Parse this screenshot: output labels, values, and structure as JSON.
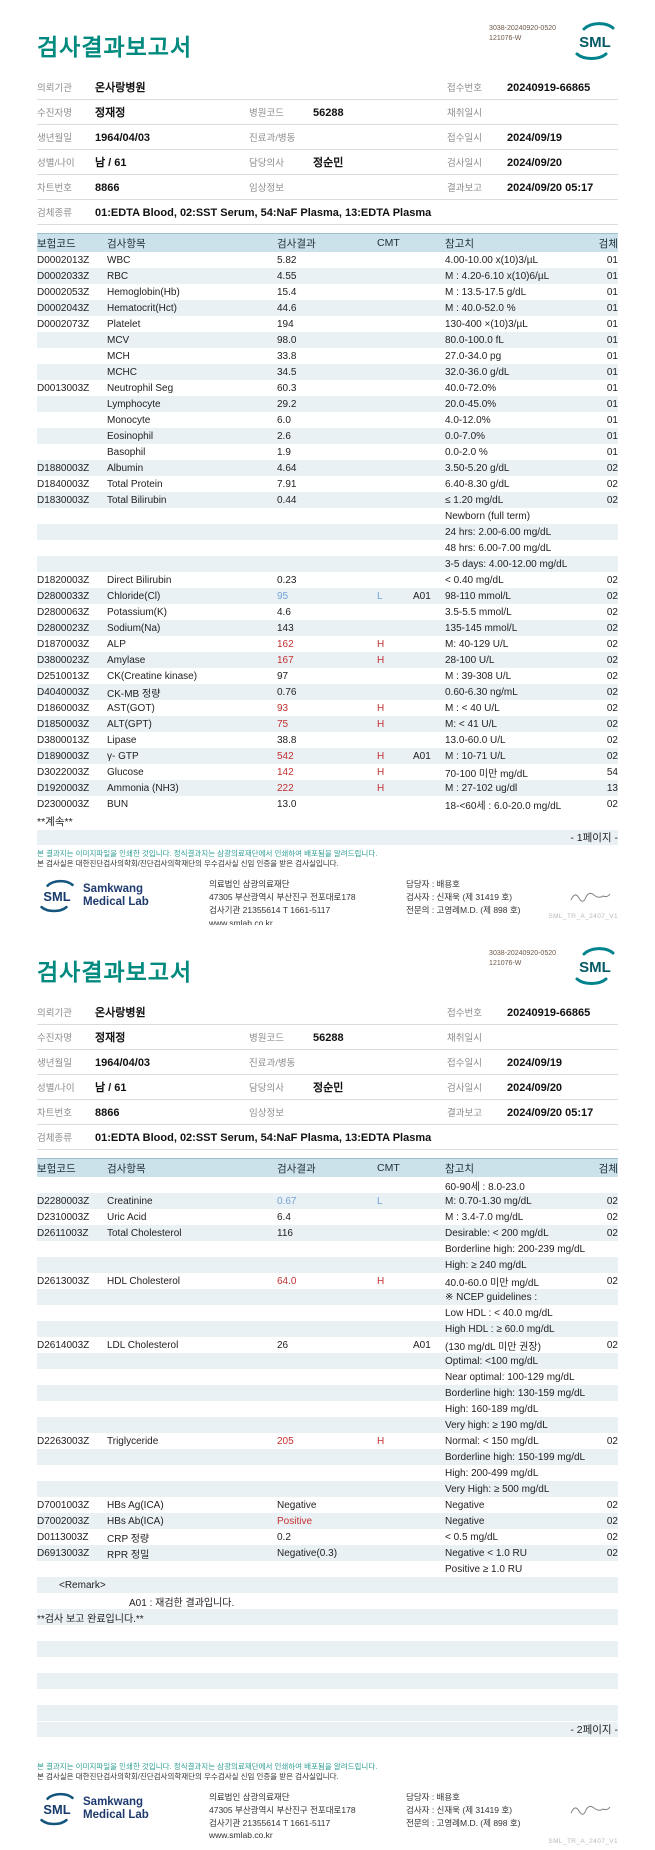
{
  "colors": {
    "accent_teal": "#00897E",
    "header_bg": "#CCE2EB",
    "stripe_bg": "#E9F1F5",
    "high_red": "#C53030",
    "low_blue": "#74A3D6",
    "footer_navy": "#1E3A6E",
    "disclaimer_teal": "#2E9E94"
  },
  "doc": {
    "code1": "3038-20240920-0520",
    "code2": "121076-W",
    "version": "SML_TR_A_2407_V1",
    "logo_text": "SML"
  },
  "report": {
    "title": "검사결과보고서",
    "info": {
      "rows": [
        {
          "cells": [
            {
              "label": "의뢰기관",
              "value": "온사랑병원"
            },
            {
              "label": "",
              "value": ""
            },
            {
              "label": "접수번호",
              "value": "20240919-66865"
            }
          ]
        },
        {
          "cells": [
            {
              "label": "수진자명",
              "value": "정재정"
            },
            {
              "label": "병원코드",
              "value": "56288"
            },
            {
              "label": "채취일시",
              "value": ""
            }
          ]
        },
        {
          "cells": [
            {
              "label": "생년월일",
              "value": "1964/04/03"
            },
            {
              "label": "진료과/병동",
              "value": ""
            },
            {
              "label": "접수일시",
              "value": "2024/09/19"
            }
          ]
        },
        {
          "cells": [
            {
              "label": "성별/나이",
              "value": "남 / 61"
            },
            {
              "label": "담당의사",
              "value": "정순민"
            },
            {
              "label": "검사일시",
              "value": "2024/09/20"
            }
          ]
        },
        {
          "cells": [
            {
              "label": "차트번호",
              "value": "8866"
            },
            {
              "label": "임상정보",
              "value": ""
            },
            {
              "label": "결과보고",
              "value": "2024/09/20 05:17"
            }
          ]
        },
        {
          "cells": [
            {
              "label": "검체종류",
              "value": "01:EDTA Blood, 02:SST Serum, 54:NaF Plasma, 13:EDTA Plasma"
            }
          ]
        }
      ]
    },
    "columns": {
      "code": "보험코드",
      "name": "검사항목",
      "result": "검사결과",
      "cmt": "CMT",
      "ref": "참고치",
      "spec": "검체"
    },
    "pages": [
      {
        "page_label": "- 1페이지 -",
        "continued": "**계속**",
        "rows": [
          {
            "c": "D0002013Z",
            "n": "WBC",
            "r": "5.82",
            "f": "4.00-10.00 x(10)3/µL",
            "s": "01"
          },
          {
            "c": "D0002033Z",
            "n": "RBC",
            "r": "4.55",
            "f": "M : 4.20-6.10 x(10)6/µL",
            "s": "01"
          },
          {
            "c": "D0002053Z",
            "n": "Hemoglobin(Hb)",
            "r": "15.4",
            "f": "M : 13.5-17.5 g/dL",
            "s": "01"
          },
          {
            "c": "D0002043Z",
            "n": "Hematocrit(Hct)",
            "r": "44.6",
            "f": "M : 40.0-52.0 %",
            "s": "01"
          },
          {
            "c": "D0002073Z",
            "n": "Platelet",
            "r": "194",
            "f": "130-400 ×(10)3/µL",
            "s": "01"
          },
          {
            "c": "",
            "n": "MCV",
            "r": "98.0",
            "f": "80.0-100.0 fL",
            "s": "01"
          },
          {
            "c": "",
            "n": "MCH",
            "r": "33.8",
            "f": "27.0-34.0 pg",
            "s": "01"
          },
          {
            "c": "",
            "n": "MCHC",
            "r": "34.5",
            "f": "32.0-36.0 g/dL",
            "s": "01"
          },
          {
            "c": "D0013003Z",
            "n": "Neutrophil Seg",
            "r": "60.3",
            "f": "40.0-72.0%",
            "s": "01"
          },
          {
            "c": "",
            "n": "Lymphocyte",
            "r": "29.2",
            "f": "20.0-45.0%",
            "s": "01"
          },
          {
            "c": "",
            "n": "Monocyte",
            "r": "6.0",
            "f": "4.0-12.0%",
            "s": "01"
          },
          {
            "c": "",
            "n": "Eosinophil",
            "r": "2.6",
            "f": "0.0-7.0%",
            "s": "01"
          },
          {
            "c": "",
            "n": "Basophil",
            "r": "1.9",
            "f": "0.0-2.0 %",
            "s": "01"
          },
          {
            "c": "D1880003Z",
            "n": "Albumin",
            "r": "4.64",
            "f": "3.50-5.20 g/dL",
            "s": "02"
          },
          {
            "c": "D1840003Z",
            "n": "Total Protein",
            "r": "7.91",
            "f": "6.40-8.30 g/dL",
            "s": "02"
          },
          {
            "c": "D1830003Z",
            "n": "Total Bilirubin",
            "r": "0.44",
            "f": "≤ 1.20 mg/dL",
            "s": "02"
          },
          {
            "f": "Newborn (full term)"
          },
          {
            "f": "24 hrs: 2.00-6.00 mg/dL"
          },
          {
            "f": "48 hrs: 6.00-7.00 mg/dL"
          },
          {
            "f": "3-5 days: 4.00-12.00 mg/dL"
          },
          {
            "c": "D1820003Z",
            "n": "Direct Bilirubin",
            "r": "0.23",
            "f": "< 0.40 mg/dL",
            "s": "02"
          },
          {
            "c": "D2800033Z",
            "n": "Chloride(Cl)",
            "r": "95",
            "rc": "lo",
            "m": "L",
            "a": "A01",
            "f": "98-110 mmol/L",
            "s": "02"
          },
          {
            "c": "D2800063Z",
            "n": "Potassium(K)",
            "r": "4.6",
            "f": "3.5-5.5 mmol/L",
            "s": "02"
          },
          {
            "c": "D2800023Z",
            "n": "Sodium(Na)",
            "r": "143",
            "f": "135-145 mmol/L",
            "s": "02"
          },
          {
            "c": "D1870003Z",
            "n": "ALP",
            "r": "162",
            "rc": "hi",
            "m": "H",
            "f": "M: 40-129 U/L",
            "s": "02"
          },
          {
            "c": "D3800023Z",
            "n": "Amylase",
            "r": "167",
            "rc": "hi",
            "m": "H",
            "f": "28-100 U/L",
            "s": "02"
          },
          {
            "c": "D2510013Z",
            "n": "CK(Creatine kinase)",
            "r": "97",
            "f": "M : 39-308 U/L",
            "s": "02"
          },
          {
            "c": "D4040003Z",
            "n": "CK-MB 정량",
            "r": "0.76",
            "f": "0.60-6.30 ng/mL",
            "s": "02"
          },
          {
            "c": "D1860003Z",
            "n": "AST(GOT)",
            "r": "93",
            "rc": "hi",
            "m": "H",
            "f": "M : < 40 U/L",
            "s": "02"
          },
          {
            "c": "D1850003Z",
            "n": "ALT(GPT)",
            "r": "75",
            "rc": "hi",
            "m": "H",
            "f": "M: < 41 U/L",
            "s": "02"
          },
          {
            "c": "D3800013Z",
            "n": "Lipase",
            "r": "38.8",
            "f": "13.0-60.0 U/L",
            "s": "02"
          },
          {
            "c": "D1890003Z",
            "n": "γ- GTP",
            "r": "542",
            "rc": "hi",
            "m": "H",
            "a": "A01",
            "f": "M : 10-71 U/L",
            "s": "02"
          },
          {
            "c": "D3022003Z",
            "n": "Glucose",
            "r": "142",
            "rc": "hi",
            "m": "H",
            "f": "70-100 미만 mg/dL",
            "s": "54"
          },
          {
            "c": "D1920003Z",
            "n": "Ammonia (NH3)",
            "r": "222",
            "rc": "hi",
            "m": "H",
            "f": "M : 27-102 ug/dl",
            "s": "13"
          },
          {
            "c": "D2300003Z",
            "n": "BUN",
            "r": "13.0",
            "f": "18-<60세 : 6.0-20.0 mg/dL",
            "s": "02"
          }
        ]
      },
      {
        "page_label": "- 2페이지 -",
        "continued": "",
        "rows": [
          {
            "f": "60-90세 : 8.0-23.0"
          },
          {
            "c": "D2280003Z",
            "n": "Creatinine",
            "r": "0.67",
            "rc": "lo",
            "m": "L",
            "f": "M: 0.70-1.30 mg/dL",
            "s": "02"
          },
          {
            "c": "D2310003Z",
            "n": "Uric Acid",
            "r": "6.4",
            "f": "M : 3.4-7.0 mg/dL",
            "s": "02"
          },
          {
            "c": "D2611003Z",
            "n": "Total Cholesterol",
            "r": "116",
            "f": "Desirable: < 200 mg/dL",
            "s": "02"
          },
          {
            "f": "Borderline high: 200-239 mg/dL"
          },
          {
            "f": "High: ≥ 240 mg/dL"
          },
          {
            "c": "D2613003Z",
            "n": "HDL Cholesterol",
            "r": "64.0",
            "rc": "hi",
            "m": "H",
            "f": "40.0-60.0 미만 mg/dL",
            "s": "02"
          },
          {
            "f": "※ NCEP guidelines :"
          },
          {
            "f": "Low HDL : < 40.0 mg/dL"
          },
          {
            "f": "High HDL : ≥ 60.0 mg/dL"
          },
          {
            "c": "D2614003Z",
            "n": "LDL Cholesterol",
            "r": "26",
            "a": "A01",
            "f": "(130 mg/dL 미만 권장)",
            "s": "02"
          },
          {
            "f": "Optimal: <100 mg/dL"
          },
          {
            "f": "Near optimal: 100-129 mg/dL"
          },
          {
            "f": "Borderline high: 130-159 mg/dL"
          },
          {
            "f": "High: 160-189 mg/dL"
          },
          {
            "f": "Very high: ≥ 190 mg/dL"
          },
          {
            "c": "D2263003Z",
            "n": "Triglyceride",
            "r": "205",
            "rc": "hi",
            "m": "H",
            "f": "Normal: < 150 mg/dL",
            "s": "02"
          },
          {
            "f": "Borderline high: 150-199 mg/dL"
          },
          {
            "f": "High: 200-499 mg/dL"
          },
          {
            "f": "Very High: ≥ 500 mg/dL"
          },
          {
            "c": "D7001003Z",
            "n": "HBs Ag(ICA)",
            "r": "Negative",
            "f": "Negative",
            "s": "02"
          },
          {
            "c": "D7002003Z",
            "n": "HBs Ab(ICA)",
            "r": "Positive",
            "rc": "hi",
            "f": "Negative",
            "s": "02"
          },
          {
            "c": "D0113003Z",
            "n": "CRP 정량",
            "r": "0.2",
            "f": "< 0.5 mg/dL",
            "s": "02"
          },
          {
            "c": "D6913003Z",
            "n": "RPR 정밀",
            "r": "Negative(0.3)",
            "f": "Negative < 1.0 RU",
            "s": "02"
          },
          {
            "f": "Positive ≥ 1.0 RU"
          },
          {
            "w": "<Remark>",
            "ind": 1
          },
          {
            "w": "A01 : 재검한 결과입니다.",
            "ind": 2
          },
          {
            "w": "**검사 보고 완료입니다.**",
            "ind": 0
          },
          {
            "e": true
          },
          {
            "e": true
          },
          {
            "e": true
          },
          {
            "e": true
          },
          {
            "e": true
          },
          {
            "e": true
          }
        ]
      }
    ],
    "disclaimer1": "본 결과지는 이미지파일을 인쇄한 것입니다. 정식결과지는 삼광의료재단에서 인쇄하여 배포됨을 알려드립니다.",
    "disclaimer2": "본 검사실은 대한진단검사의학회/진단검사의학재단의 우수검사실 신임 인증을 받은 검사실입니다.",
    "footer": {
      "brand_line1": "Samkwang",
      "brand_line2": "Medical Lab",
      "address": [
        "의료법인 삼광의료재단",
        "47305 부산광역시 부산진구 전포대로178",
        "검사기관 21355614 T 1661-5117 www.smlab.co.kr"
      ],
      "contacts": [
        "담당자 :  배용호",
        "검사자 :  신재욱 (제 31419 호)",
        "전문의 :  고영례M.D. (제 898 호)"
      ]
    }
  }
}
